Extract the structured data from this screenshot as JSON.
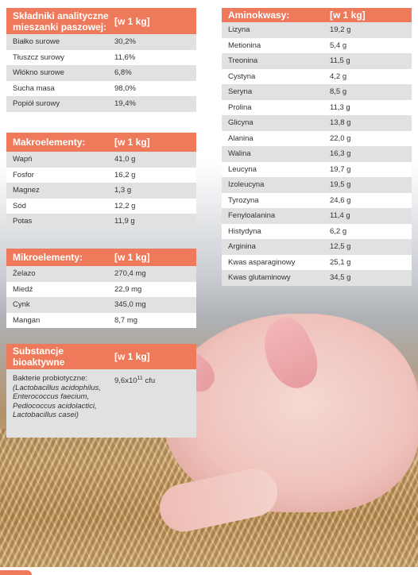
{
  "analytical": {
    "header_label": "Składniki analityczne mieszanki paszowej:",
    "header_unit": "[w 1 kg]",
    "rows": [
      {
        "name": "Białko surowe",
        "value": "30,2%"
      },
      {
        "name": "Tłuszcz surowy",
        "value": "11,6%"
      },
      {
        "name": "Włókno surowe",
        "value": "6,8%"
      },
      {
        "name": "Sucha masa",
        "value": "98,0%"
      },
      {
        "name": "Popiół surowy",
        "value": "19,4%"
      }
    ]
  },
  "macro": {
    "header_label": "Makroelementy:",
    "header_unit": "[w 1 kg]",
    "rows": [
      {
        "name": "Wapń",
        "value": "41,0 g"
      },
      {
        "name": "Fosfor",
        "value": "16,2 g"
      },
      {
        "name": "Magnez",
        "value": "1,3 g"
      },
      {
        "name": "Sód",
        "value": "12,2 g"
      },
      {
        "name": "Potas",
        "value": "11,9 g"
      }
    ]
  },
  "micro": {
    "header_label": "Mikroelementy:",
    "header_unit": "[w 1 kg]",
    "rows": [
      {
        "name": "Żelazo",
        "value": "270,4 mg"
      },
      {
        "name": "Miedź",
        "value": "22,9 mg"
      },
      {
        "name": "Cynk",
        "value": "345,0 mg"
      },
      {
        "name": "Mangan",
        "value": "8,7 mg"
      }
    ]
  },
  "bioactive": {
    "header_label": "Substancje bioaktywne",
    "header_unit": "[w 1 kg]",
    "name_line1": "Bakterie probiotyczne:",
    "name_species": "(Lactobacillus acidophilus, Enterococcus faecium, Pediococcus acidolactici, Lactobacillus casei)",
    "value_base": "9,6x10",
    "value_exp": "11",
    "value_unit": " cfu"
  },
  "amino": {
    "header_label": "Aminokwasy:",
    "header_unit": "[w 1 kg]",
    "rows": [
      {
        "name": "Lizyna",
        "value": "19,2 g"
      },
      {
        "name": "Metionina",
        "value": "5,4 g"
      },
      {
        "name": "Treonina",
        "value": "11,5 g"
      },
      {
        "name": "Cystyna",
        "value": "4,2 g"
      },
      {
        "name": "Seryna",
        "value": "8,5 g"
      },
      {
        "name": "Prolina",
        "value": "11,3 g"
      },
      {
        "name": "Glicyna",
        "value": "13,8 g"
      },
      {
        "name": "Alanina",
        "value": "22,0 g"
      },
      {
        "name": "Walina",
        "value": "16,3 g"
      },
      {
        "name": "Leucyna",
        "value": "19,7 g"
      },
      {
        "name": "Izoleucyna",
        "value": "19,5 g"
      },
      {
        "name": "Tyrozyna",
        "value": "24,6 g"
      },
      {
        "name": "Fenyloalanina",
        "value": "11,4 g"
      },
      {
        "name": "Histydyna",
        "value": "6,2 g"
      },
      {
        "name": "Arginina",
        "value": "12,5 g"
      },
      {
        "name": "Kwas asparaginowy",
        "value": "25,1 g"
      },
      {
        "name": "Kwas glutaminowy",
        "value": "34,5 g"
      }
    ]
  },
  "colors": {
    "header_bg": "#ef7a5b",
    "row_shaded": "#e1e1e2"
  }
}
